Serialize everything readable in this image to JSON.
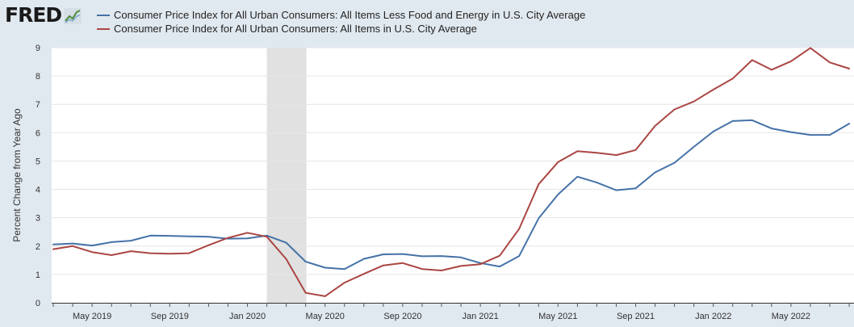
{
  "header": {
    "logo_text": "FRED",
    "logo_icon": "line-chart-icon"
  },
  "chart_data": {
    "type": "line",
    "title": "",
    "xlabel": "",
    "ylabel": "Percent Change from Year Ago",
    "ylim": [
      0,
      9
    ],
    "yticks": [
      0,
      1,
      2,
      3,
      4,
      5,
      6,
      7,
      8,
      9
    ],
    "x_tick_labels": [
      {
        "label": "May 2019",
        "month": "2019-05"
      },
      {
        "label": "Sep 2019",
        "month": "2019-09"
      },
      {
        "label": "Jan 2020",
        "month": "2020-01"
      },
      {
        "label": "May 2020",
        "month": "2020-05"
      },
      {
        "label": "Sep 2020",
        "month": "2020-09"
      },
      {
        "label": "Jan 2021",
        "month": "2021-01"
      },
      {
        "label": "May 2021",
        "month": "2021-05"
      },
      {
        "label": "Sep 2021",
        "month": "2021-09"
      },
      {
        "label": "Jan 2022",
        "month": "2022-01"
      },
      {
        "label": "May 2022",
        "month": "2022-05"
      }
    ],
    "x": [
      "2019-03",
      "2019-04",
      "2019-05",
      "2019-06",
      "2019-07",
      "2019-08",
      "2019-09",
      "2019-10",
      "2019-11",
      "2019-12",
      "2020-01",
      "2020-02",
      "2020-03",
      "2020-04",
      "2020-05",
      "2020-06",
      "2020-07",
      "2020-08",
      "2020-09",
      "2020-10",
      "2020-11",
      "2020-12",
      "2021-01",
      "2021-02",
      "2021-03",
      "2021-04",
      "2021-05",
      "2021-06",
      "2021-07",
      "2021-08",
      "2021-09",
      "2021-10",
      "2021-11",
      "2021-12",
      "2022-01",
      "2022-02",
      "2022-03",
      "2022-04",
      "2022-05",
      "2022-06",
      "2022-07",
      "2022-08"
    ],
    "recession": {
      "start": "2020-02",
      "end": "2020-04",
      "color": "#e1e1e1"
    },
    "grid": true,
    "legend_position": "top",
    "series": [
      {
        "name": "Consumer Price Index for All Urban Consumers: All Items Less Food and Energy in U.S. City Average",
        "color": "#4572a7",
        "values": [
          2.06,
          2.09,
          2.02,
          2.14,
          2.19,
          2.37,
          2.36,
          2.34,
          2.33,
          2.26,
          2.27,
          2.37,
          2.12,
          1.45,
          1.24,
          1.19,
          1.55,
          1.71,
          1.72,
          1.64,
          1.65,
          1.6,
          1.4,
          1.28,
          1.65,
          2.98,
          3.82,
          4.45,
          4.24,
          3.97,
          4.04,
          4.6,
          4.94,
          5.5,
          6.04,
          6.41,
          6.44,
          6.15,
          6.02,
          5.92,
          5.92,
          6.32
        ]
      },
      {
        "name": "Consumer Price Index for All Urban Consumers: All Items in U.S. City Average",
        "color": "#aa4643",
        "values": [
          1.89,
          2.0,
          1.79,
          1.68,
          1.82,
          1.75,
          1.73,
          1.75,
          2.03,
          2.29,
          2.47,
          2.33,
          1.54,
          0.35,
          0.23,
          0.71,
          1.02,
          1.32,
          1.4,
          1.19,
          1.14,
          1.3,
          1.36,
          1.66,
          2.61,
          4.18,
          4.96,
          5.35,
          5.29,
          5.21,
          5.39,
          6.24,
          6.82,
          7.1,
          7.52,
          7.91,
          8.56,
          8.22,
          8.52,
          8.99,
          8.48,
          8.26
        ]
      }
    ]
  }
}
